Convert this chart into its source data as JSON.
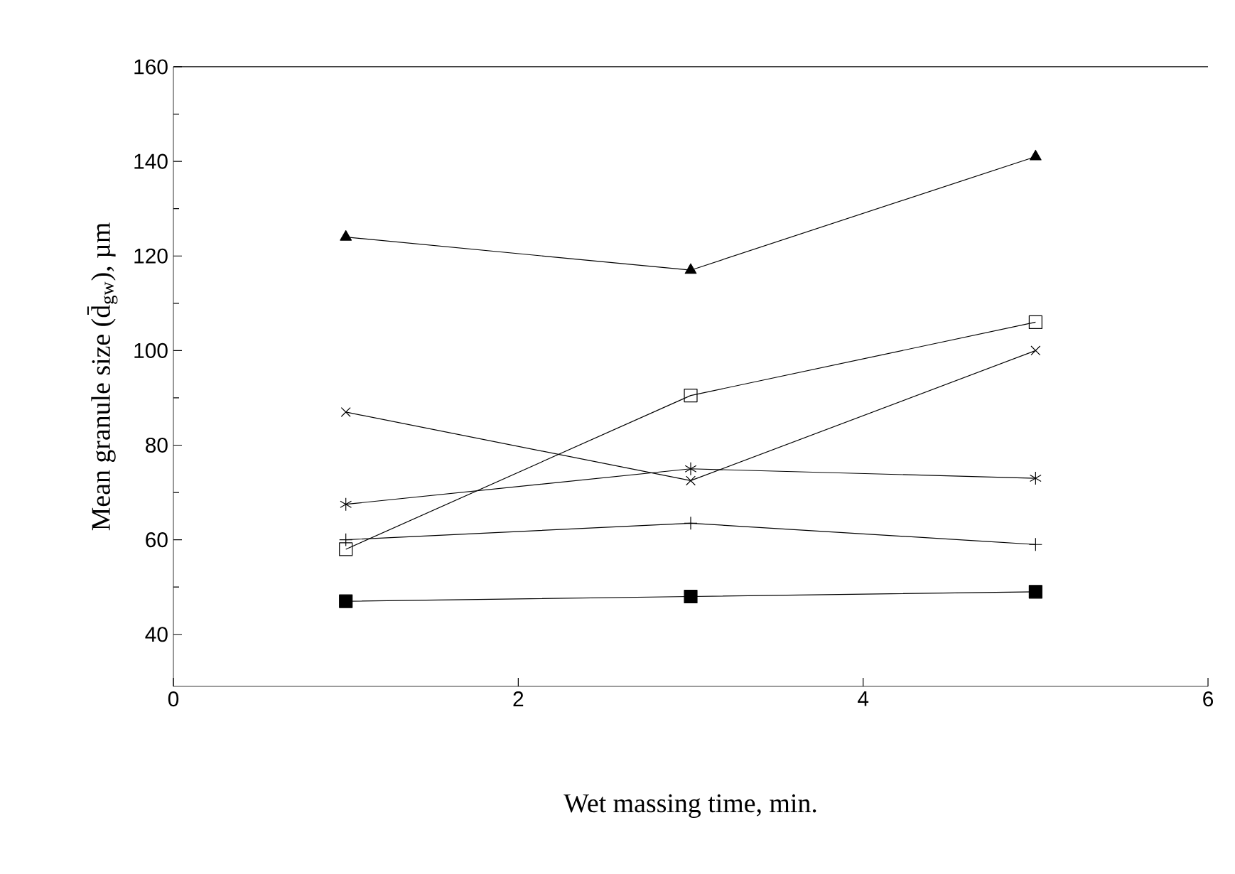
{
  "chart_data": {
    "type": "line",
    "xlabel": "Wet massing time, min.",
    "ylabel": "Mean granule size (d̄$_{gw}$), µm",
    "xlim": [
      0,
      6
    ],
    "xticks": [
      0,
      2,
      4,
      6
    ],
    "ylim": [
      29,
      160
    ],
    "yticks": [
      40,
      60,
      80,
      100,
      120,
      140,
      160
    ],
    "x": [
      1,
      3,
      5
    ],
    "grid": false,
    "line_style": "solid",
    "series": [
      {
        "color": "#000000",
        "marker": "triangle",
        "values": [
          124,
          117,
          141
        ]
      },
      {
        "color": "#000000",
        "marker": "square",
        "values": [
          58,
          90.5,
          106
        ]
      },
      {
        "color": "#000000",
        "marker": "cross",
        "values": [
          87,
          72.5,
          100
        ]
      },
      {
        "color": "#000000",
        "marker": "cross",
        "values": [
          67.5,
          75,
          73
        ]
      },
      {
        "color": "#000000",
        "marker": "cross",
        "values": [
          60,
          63.5,
          59
        ]
      },
      {
        "color": "#000000",
        "marker": "square",
        "values": [
          47,
          48,
          49
        ]
      }
    ]
  }
}
